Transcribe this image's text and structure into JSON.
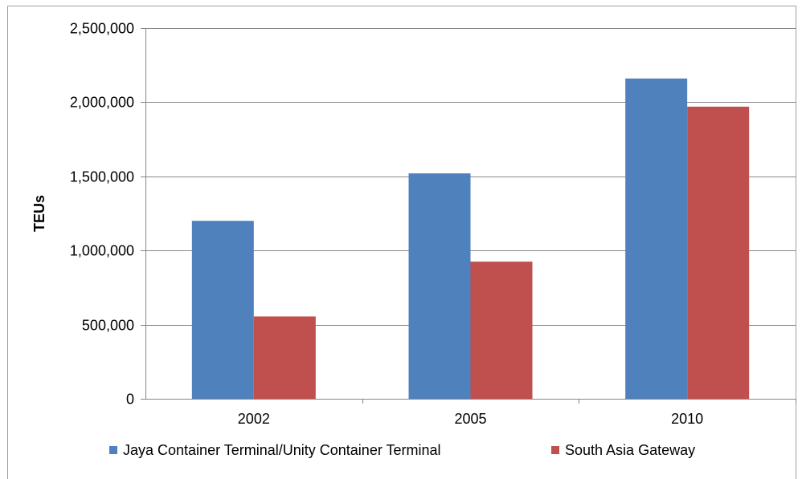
{
  "chart_data": {
    "type": "bar",
    "title": "",
    "xlabel": "",
    "ylabel": "TEUs",
    "categories": [
      "2002",
      "2005",
      "2010"
    ],
    "series": [
      {
        "name": "Jaya Container Terminal/Unity Container Terminal",
        "color": "#4f81bd",
        "values": [
          1200000,
          1520000,
          2160000
        ]
      },
      {
        "name": "South Asia Gateway",
        "color": "#c0504d",
        "values": [
          555000,
          925000,
          1970000
        ]
      }
    ],
    "ylim": [
      0,
      2500000
    ],
    "yticks": [
      0,
      500000,
      1000000,
      1500000,
      2000000,
      2500000
    ],
    "ytick_labels": [
      "0",
      "500,000",
      "1,000,000",
      "1,500,000",
      "2,000,000",
      "2,500,000"
    ],
    "grid": true,
    "legend_position": "bottom"
  }
}
